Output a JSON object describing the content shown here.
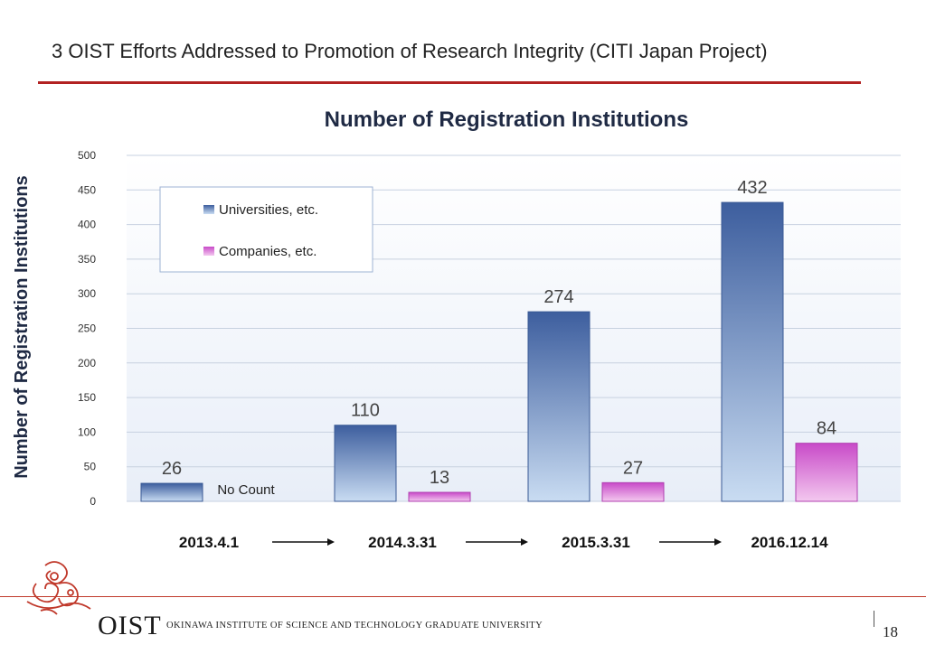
{
  "slide": {
    "title": "3 OIST Efforts Addressed to Promotion of Research Integrity (CITI Japan Project)",
    "page_number": "18"
  },
  "footer": {
    "logo_text": "OIST",
    "org_name": "Okinawa Institute of Science and Technology Graduate University"
  },
  "colors": {
    "title_rule": "#b22222",
    "universities": "#4a6aa5",
    "companies": "#cc55cc"
  },
  "chart_data": {
    "type": "bar",
    "title": "Number of Registration Institutions",
    "ylabel": "Number of Registration Institutions",
    "xlabel": "",
    "ylim": [
      0,
      500
    ],
    "yticks": [
      0,
      50,
      100,
      150,
      200,
      250,
      300,
      350,
      400,
      450,
      500
    ],
    "grid": true,
    "legend_position": "top-left",
    "categories": [
      "2013.4.1",
      "2014.3.31",
      "2015.3.31",
      "2016.12.14"
    ],
    "series": [
      {
        "name": "Universities, etc.",
        "values": [
          26,
          110,
          274,
          432
        ]
      },
      {
        "name": "Companies, etc.",
        "values": [
          null,
          13,
          27,
          84
        ]
      }
    ],
    "annotations": [
      "No Count"
    ]
  }
}
